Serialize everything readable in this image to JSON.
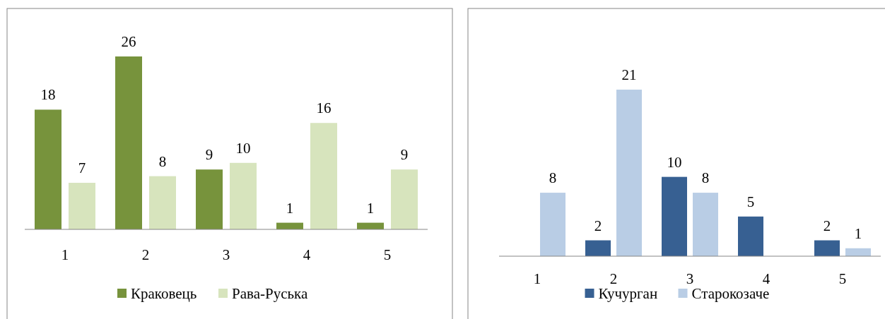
{
  "chart_data": [
    {
      "type": "bar",
      "categories": [
        "1",
        "2",
        "3",
        "4",
        "5"
      ],
      "data_labels": true,
      "legend": "bottom",
      "series": [
        {
          "name": "Краковець",
          "color": "#77933c",
          "values": [
            18,
            26,
            9,
            1,
            1
          ]
        },
        {
          "name": "Рава-Руська",
          "color": "#d7e4bd",
          "values": [
            7,
            8,
            10,
            16,
            9
          ]
        }
      ]
    },
    {
      "type": "bar",
      "categories": [
        "1",
        "2",
        "3",
        "4",
        "5"
      ],
      "data_labels": true,
      "legend": "bottom",
      "series": [
        {
          "name": "Кучурган",
          "color": "#376092",
          "values": [
            null,
            2,
            10,
            5,
            2
          ]
        },
        {
          "name": "Старокозаче",
          "color": "#b9cde5",
          "values": [
            8,
            21,
            8,
            null,
            1
          ]
        }
      ]
    }
  ]
}
